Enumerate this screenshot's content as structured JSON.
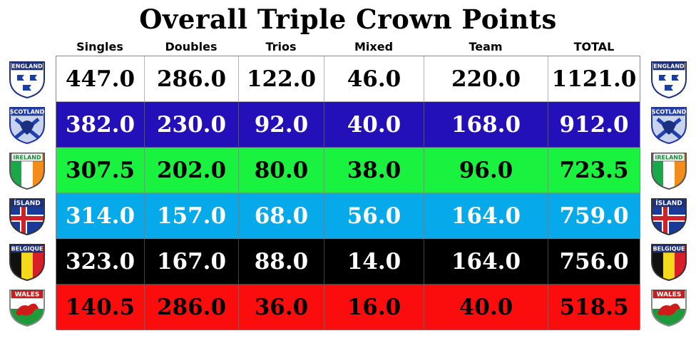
{
  "title": "Overall Triple Crown Points",
  "columns": [
    "Singles",
    "Doubles",
    "Trios",
    "Mixed",
    "Team",
    "TOTAL"
  ],
  "rows": [
    {
      "country": "ENGLAND",
      "bg": "#ffffff",
      "text": "dark",
      "values": [
        "447.0",
        "286.0",
        "122.0",
        "46.0",
        "220.0",
        "1121.0"
      ]
    },
    {
      "country": "SCOTLAND",
      "bg": "#2410b8",
      "text": "light",
      "values": [
        "382.0",
        "230.0",
        "92.0",
        "40.0",
        "168.0",
        "912.0"
      ]
    },
    {
      "country": "IRELAND",
      "bg": "#19f23f",
      "text": "dark",
      "values": [
        "307.5",
        "202.0",
        "80.0",
        "38.0",
        "96.0",
        "723.5"
      ]
    },
    {
      "country": "ÍSLAND",
      "bg": "#06a9ea",
      "text": "light",
      "values": [
        "314.0",
        "157.0",
        "68.0",
        "56.0",
        "164.0",
        "759.0"
      ]
    },
    {
      "country": "BELGIQUE",
      "bg": "#000000",
      "text": "light",
      "values": [
        "323.0",
        "167.0",
        "88.0",
        "14.0",
        "164.0",
        "756.0"
      ]
    },
    {
      "country": "WALES",
      "bg": "#fb0d0d",
      "text": "dark",
      "values": [
        "140.5",
        "286.0",
        "36.0",
        "16.0",
        "40.0",
        "518.5"
      ]
    }
  ]
}
